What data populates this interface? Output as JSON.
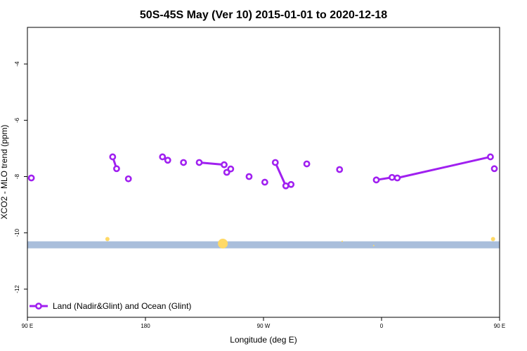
{
  "chart_data": {
    "type": "line",
    "title": "50S-45S May (Ver 10)   2015-01-01 to 2020-12-18",
    "xlabel": "Longitude (deg E)",
    "ylabel": "XCO2 - MLO trend (ppm)",
    "xlim": [
      90,
      450
    ],
    "ylim": [
      -13,
      -2.7
    ],
    "x_ticks": [
      {
        "value": 90,
        "label": "90 E"
      },
      {
        "value": 180,
        "label": "180"
      },
      {
        "value": 270,
        "label": "90 W"
      },
      {
        "value": 360,
        "label": "0"
      },
      {
        "value": 450,
        "label": "90 E"
      },
      {
        "value": 540,
        "label": "180"
      }
    ],
    "y_ticks": [
      {
        "value": -4,
        "label": "-4"
      },
      {
        "value": -6,
        "label": "-6"
      },
      {
        "value": -8,
        "label": "-8"
      },
      {
        "value": -10,
        "label": "-10"
      },
      {
        "value": -12,
        "label": "-12"
      }
    ],
    "series": [
      {
        "name": "Land (Nadir&Glint) and Ocean (Glint)",
        "color": "#a020f0",
        "points": [
          {
            "x": 93,
            "y": -8.05
          },
          {
            "x": 155,
            "y": -7.3
          },
          {
            "x": 158,
            "y": -7.72
          },
          {
            "x": 167,
            "y": -8.08
          },
          {
            "x": 193,
            "y": -7.3
          },
          {
            "x": 197,
            "y": -7.42
          },
          {
            "x": 209,
            "y": -7.5
          },
          {
            "x": 221,
            "y": -7.5
          },
          {
            "x": 240,
            "y": -7.58
          },
          {
            "x": 242,
            "y": -7.85
          },
          {
            "x": 245,
            "y": -7.73
          },
          {
            "x": 259,
            "y": -8.0
          },
          {
            "x": 271,
            "y": -8.2
          },
          {
            "x": 279,
            "y": -7.5
          },
          {
            "x": 287,
            "y": -8.33
          },
          {
            "x": 291,
            "y": -8.28
          },
          {
            "x": 303,
            "y": -7.55
          },
          {
            "x": 328,
            "y": -7.75
          },
          {
            "x": 356,
            "y": -8.12
          },
          {
            "x": 368,
            "y": -8.03
          },
          {
            "x": 372,
            "y": -8.05
          },
          {
            "x": 443,
            "y": -7.3
          },
          {
            "x": 446,
            "y": -7.72
          }
        ],
        "segments": [
          [
            1,
            2
          ],
          [
            7,
            8
          ],
          [
            13,
            14
          ],
          [
            18,
            19
          ],
          [
            20,
            21
          ]
        ]
      }
    ],
    "band": {
      "y_from": -10.55,
      "y_to": -10.3,
      "color": "#a9bedb"
    },
    "highlights": [
      {
        "x": 151,
        "y": -10.22,
        "size": 3
      },
      {
        "x": 239,
        "y": -10.38,
        "size": 7
      },
      {
        "x": 330,
        "y": -10.3,
        "size": 1
      },
      {
        "x": 354,
        "y": -10.45,
        "size": 1
      },
      {
        "x": 445,
        "y": -10.22,
        "size": 3
      }
    ],
    "highlight_color": "#ffd966",
    "legend": {
      "position": "bottom-left"
    },
    "grid": false
  }
}
